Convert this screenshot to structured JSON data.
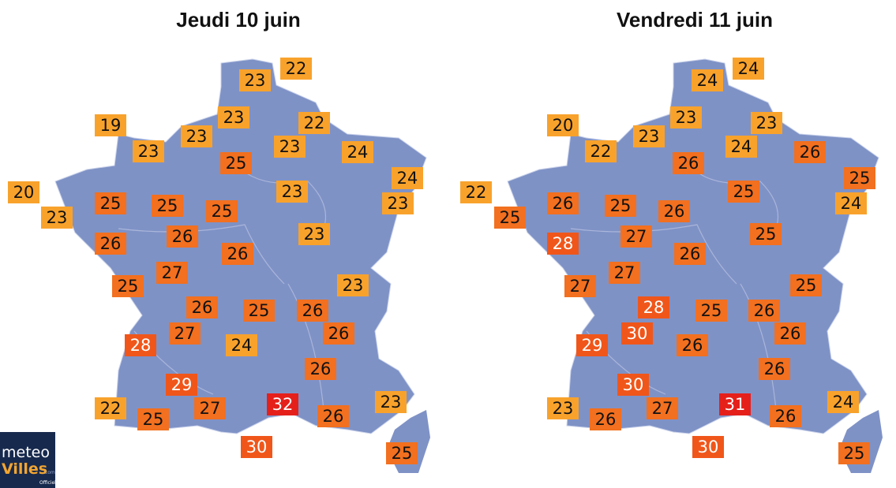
{
  "maps": [
    {
      "title": "Jeudi 10 juin",
      "temperatures": [
        22,
        23,
        19,
        23,
        22,
        23,
        23,
        23,
        24,
        25,
        24,
        20,
        23,
        25,
        25,
        25,
        23,
        23,
        26,
        23,
        26,
        26,
        27,
        25,
        23,
        26,
        25,
        26,
        27,
        26,
        28,
        24,
        26,
        29,
        22,
        32,
        27,
        23,
        25,
        26,
        30,
        25
      ]
    },
    {
      "title": "Vendredi 11 juin",
      "temperatures": [
        24,
        24,
        20,
        23,
        23,
        23,
        22,
        24,
        26,
        26,
        25,
        22,
        25,
        26,
        25,
        26,
        24,
        25,
        27,
        25,
        28,
        26,
        27,
        27,
        25,
        28,
        25,
        26,
        30,
        26,
        29,
        26,
        26,
        30,
        23,
        31,
        27,
        24,
        26,
        26,
        30,
        25
      ]
    }
  ],
  "logo": {
    "line1": "meteo",
    "line2": "Villes",
    "suffix": ".com",
    "tag": "Officiel"
  }
}
